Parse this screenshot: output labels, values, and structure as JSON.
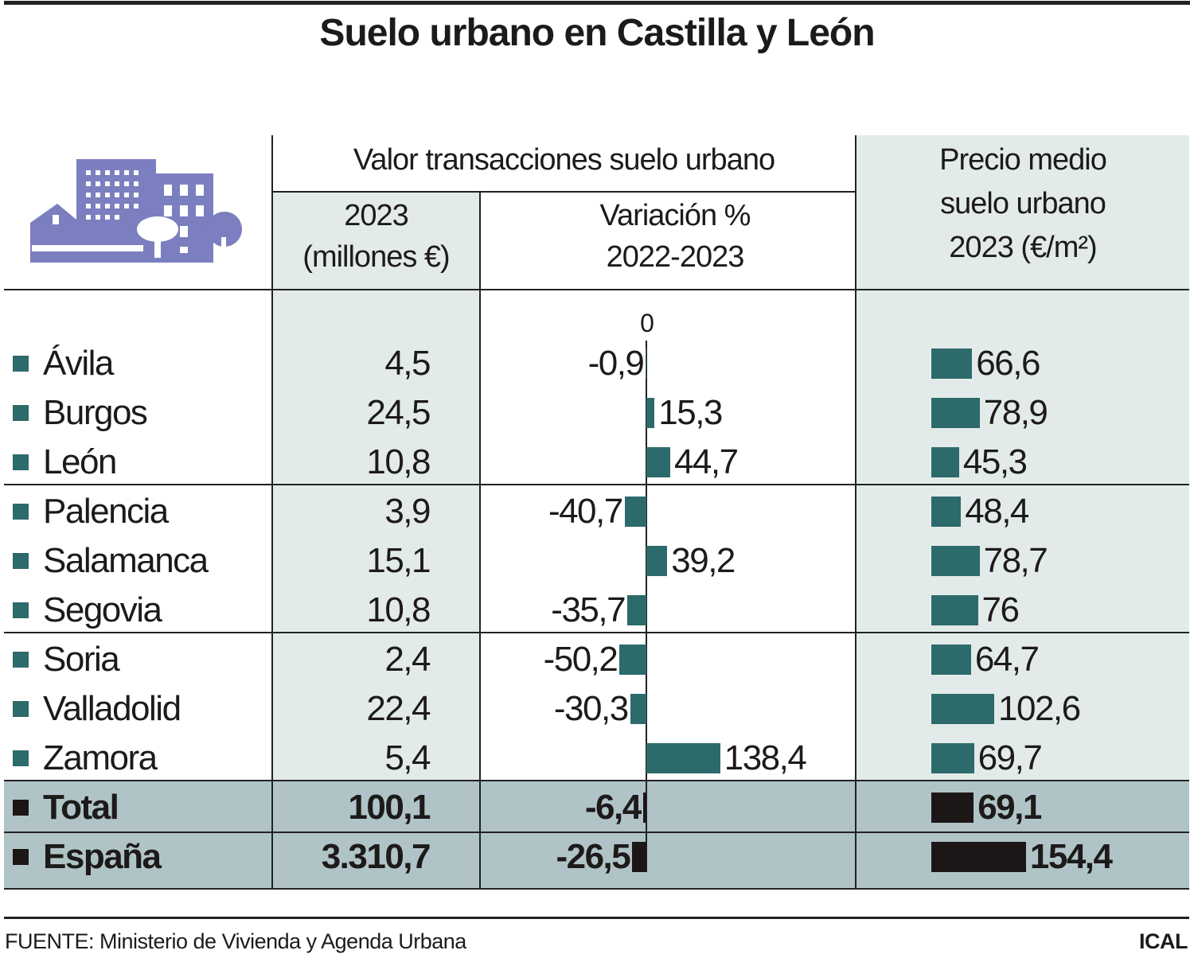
{
  "title": "Suelo urbano en Castilla y León",
  "headers": {
    "group": "Valor transacciones suelo urbano",
    "value_line1": "2023",
    "value_line2": "(millones €)",
    "variation_line1": "Variación %",
    "variation_line2": "2022-2023",
    "price_line1": "Precio medio",
    "price_line2": "suelo urbano",
    "price_line3": "2023 (€/m²)",
    "zero_label": "0"
  },
  "colors": {
    "bar": "#2d6a6b",
    "bar_total": "#1c1616",
    "light_bg": "#e2ebe9",
    "total_bg": "#b0c4c8",
    "icon": "#7b7fbf"
  },
  "icon": "city-buildings-icon",
  "chart_data": {
    "type": "table",
    "title": "Suelo urbano en Castilla y León",
    "columns": [
      "",
      "2023 (millones €)",
      "Variación % 2022-2023",
      "Precio medio suelo urbano 2023 (€/m²)"
    ],
    "rows": [
      {
        "name": "Ávila",
        "value": "4,5",
        "variation": -0.9,
        "variation_label": "-0,9",
        "price": 66.6,
        "price_label": "66,6"
      },
      {
        "name": "Burgos",
        "value": "24,5",
        "variation": 15.3,
        "variation_label": "15,3",
        "price": 78.9,
        "price_label": "78,9"
      },
      {
        "name": "León",
        "value": "10,8",
        "variation": 44.7,
        "variation_label": "44,7",
        "price": 45.3,
        "price_label": "45,3"
      },
      {
        "name": "Palencia",
        "value": "3,9",
        "variation": -40.7,
        "variation_label": "-40,7",
        "price": 48.4,
        "price_label": "48,4"
      },
      {
        "name": "Salamanca",
        "value": "15,1",
        "variation": 39.2,
        "variation_label": "39,2",
        "price": 78.7,
        "price_label": "78,7"
      },
      {
        "name": "Segovia",
        "value": "10,8",
        "variation": -35.7,
        "variation_label": "-35,7",
        "price": 76,
        "price_label": "76"
      },
      {
        "name": "Soria",
        "value": "2,4",
        "variation": -50.2,
        "variation_label": "-50,2",
        "price": 64.7,
        "price_label": "64,7"
      },
      {
        "name": "Valladolid",
        "value": "22,4",
        "variation": -30.3,
        "variation_label": "-30,3",
        "price": 102.6,
        "price_label": "102,6"
      },
      {
        "name": "Zamora",
        "value": "5,4",
        "variation": 138.4,
        "variation_label": "138,4",
        "price": 69.7,
        "price_label": "69,7"
      },
      {
        "name": "Total",
        "value": "100,1",
        "variation": -6.4,
        "variation_label": "-6,4",
        "price": 69.1,
        "price_label": "69,1",
        "total": true
      },
      {
        "name": "España",
        "value": "3.310,7",
        "variation": -26.5,
        "variation_label": "-26,5",
        "price": 154.4,
        "price_label": "154,4",
        "total": true
      }
    ]
  },
  "footer": {
    "source": "FUENTE: Ministerio de Vivienda y Agenda Urbana",
    "brand": "ICAL"
  }
}
